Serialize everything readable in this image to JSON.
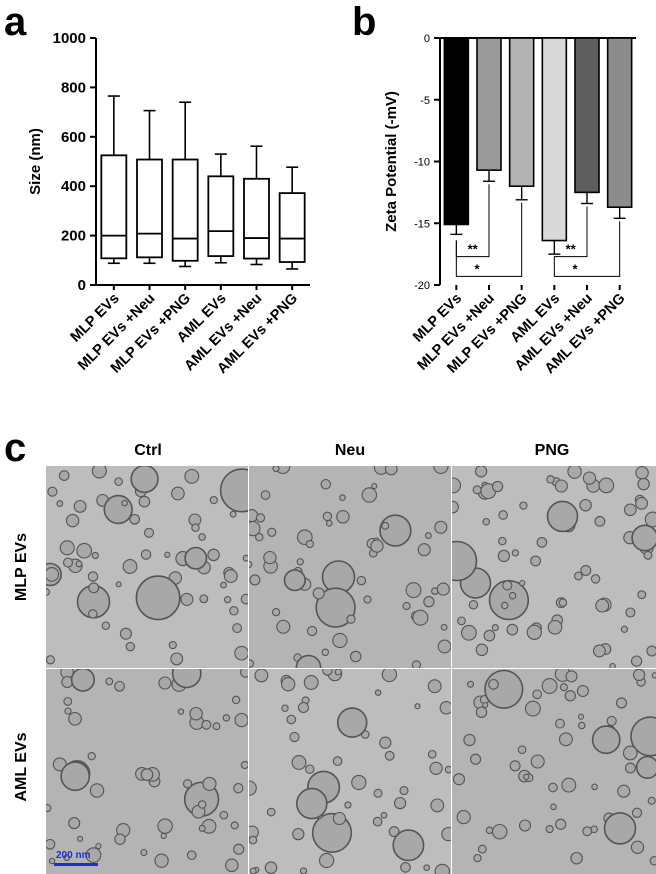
{
  "panels": {
    "a": "a",
    "b": "b",
    "c": "c"
  },
  "chart_data": [
    {
      "type": "box",
      "panel": "a",
      "title": "",
      "ylabel": "Size (nm)",
      "xlabel": "",
      "ylim": [
        0,
        1000
      ],
      "yticks": [
        0,
        200,
        400,
        600,
        800,
        1000
      ],
      "categories": [
        "MLP EVs",
        "MLP EVs +Neu",
        "MLP EVs +PNG",
        "AML EVs",
        "AML EVs +Neu",
        "AML EVs +PNG"
      ],
      "boxes": [
        {
          "min": 88,
          "q1": 108,
          "median": 200,
          "q3": 525,
          "max": 765
        },
        {
          "min": 88,
          "q1": 112,
          "median": 208,
          "q3": 508,
          "max": 706
        },
        {
          "min": 75,
          "q1": 98,
          "median": 188,
          "q3": 508,
          "max": 740
        },
        {
          "min": 90,
          "q1": 117,
          "median": 218,
          "q3": 440,
          "max": 530
        },
        {
          "min": 83,
          "q1": 107,
          "median": 190,
          "q3": 430,
          "max": 562
        },
        {
          "min": 65,
          "q1": 93,
          "median": 188,
          "q3": 372,
          "max": 477
        }
      ],
      "grid": false,
      "legend": "none"
    },
    {
      "type": "bar",
      "panel": "b",
      "title": "",
      "ylabel": "Zeta  Potential (-mV)",
      "xlabel": "",
      "ylim": [
        -20,
        0
      ],
      "yticks": [
        0,
        -5,
        -10,
        -15,
        -20
      ],
      "categories": [
        "MLP EVs",
        "MLP EVs +Neu",
        "MLP EVs +PNG",
        "AML EVs",
        "AML EVs +Neu",
        "AML EVs +PNG"
      ],
      "values": [
        -15.1,
        -10.7,
        -12.0,
        -16.4,
        -12.5,
        -13.7
      ],
      "errors": [
        0.8,
        0.9,
        1.1,
        1.1,
        0.9,
        0.9
      ],
      "colors": [
        "#000000",
        "#9a9a9a",
        "#b3b3b3",
        "#d9d9d9",
        "#5e5e5e",
        "#8c8c8c"
      ],
      "significance": [
        {
          "from": 0,
          "to": 1,
          "label": "**"
        },
        {
          "from": 0,
          "to": 2,
          "label": "*"
        },
        {
          "from": 3,
          "to": 4,
          "label": "**"
        },
        {
          "from": 3,
          "to": 5,
          "label": "*"
        }
      ],
      "grid": false,
      "legend": "none"
    }
  ],
  "micrographs": {
    "columns": [
      "Ctrl",
      "Neu",
      "PNG"
    ],
    "rows": [
      "MLP EVs",
      "AML EVs"
    ],
    "scalebar": "200 nm"
  }
}
